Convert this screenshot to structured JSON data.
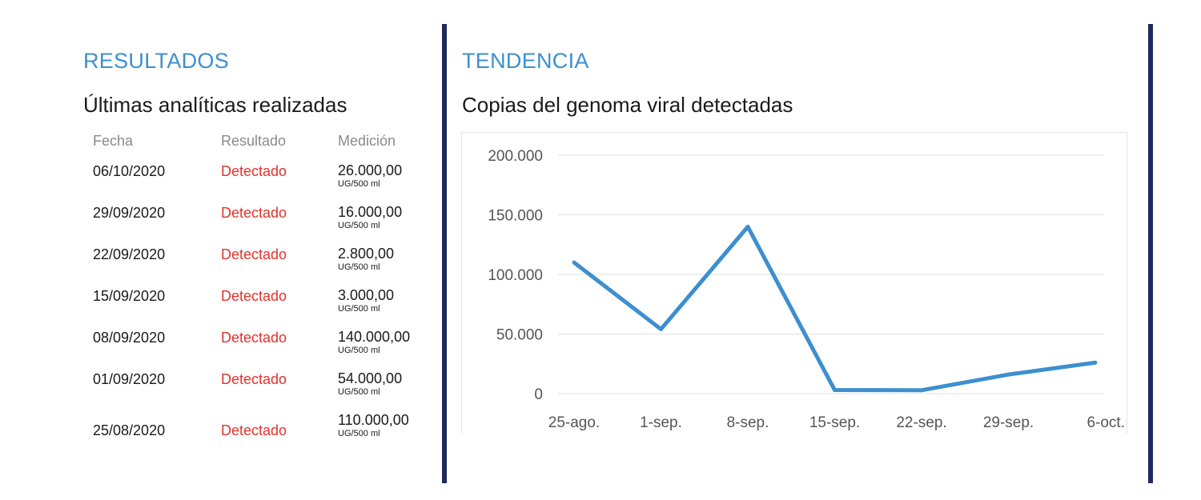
{
  "results": {
    "title": "RESULTADOS",
    "subtitle": "Últimas analíticas realizadas",
    "headers": {
      "fecha": "Fecha",
      "resultado": "Resultado",
      "medicion": "Medición"
    },
    "rows": [
      {
        "date": "06/10/2020",
        "status": "Detectado",
        "value": "26.000,00",
        "unit": "UG/500 ml"
      },
      {
        "date": "29/09/2020",
        "status": "Detectado",
        "value": "16.000,00",
        "unit": "UG/500 ml"
      },
      {
        "date": "22/09/2020",
        "status": "Detectado",
        "value": "2.800,00",
        "unit": "UG/500 ml"
      },
      {
        "date": "15/09/2020",
        "status": "Detectado",
        "value": "3.000,00",
        "unit": "UG/500 ml"
      },
      {
        "date": "08/09/2020",
        "status": "Detectado",
        "value": "140.000,00",
        "unit": "UG/500 ml"
      },
      {
        "date": "01/09/2020",
        "status": "Detectado",
        "value": "54.000,00",
        "unit": "UG/500 ml"
      },
      {
        "date": "25/08/2020",
        "status": "Detectado",
        "value": "110.000,00",
        "unit": "UG/500 ml"
      }
    ]
  },
  "trend": {
    "title": "TENDENCIA",
    "subtitle": "Copias del genoma viral detectadas"
  },
  "colors": {
    "accent": "#3d8fcf",
    "status_detected": "#e4312b",
    "divider": "#1f2a5c",
    "line": "#3d8fcf",
    "grid": "#e0e0e0"
  },
  "chart_data": {
    "type": "line",
    "title": "Copias del genoma viral detectadas",
    "x": [
      "25-ago.",
      "1-sep.",
      "8-sep.",
      "15-sep.",
      "22-sep.",
      "29-sep.",
      "6-oct."
    ],
    "series": [
      {
        "values": [
          110000,
          54000,
          140000,
          3000,
          2800,
          16000,
          26000
        ]
      }
    ],
    "yticks": [
      0,
      50000,
      100000,
      150000,
      200000
    ],
    "ytick_labels": [
      "0",
      "50.000",
      "100.000",
      "150.000",
      "200.000"
    ],
    "ylim": [
      0,
      200000
    ],
    "grid": true,
    "legend": "none"
  }
}
